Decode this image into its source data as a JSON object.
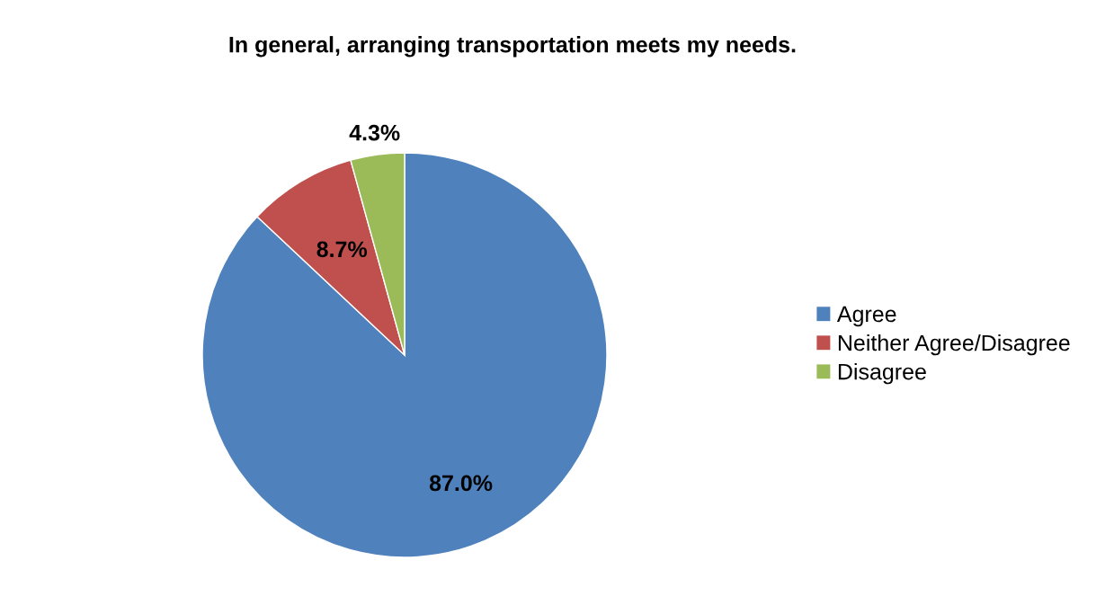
{
  "chart_data": {
    "type": "pie",
    "title": "In general, arranging transportation meets my needs.",
    "categories": [
      "Agree",
      "Neither Agree/Disagree",
      "Disagree"
    ],
    "values": [
      87.0,
      8.7,
      4.3
    ],
    "colors": [
      "#4f81bd",
      "#c0504d",
      "#9bbb59"
    ],
    "value_labels": [
      "87.0%",
      "8.7%",
      "4.3%"
    ],
    "legend": "right"
  }
}
